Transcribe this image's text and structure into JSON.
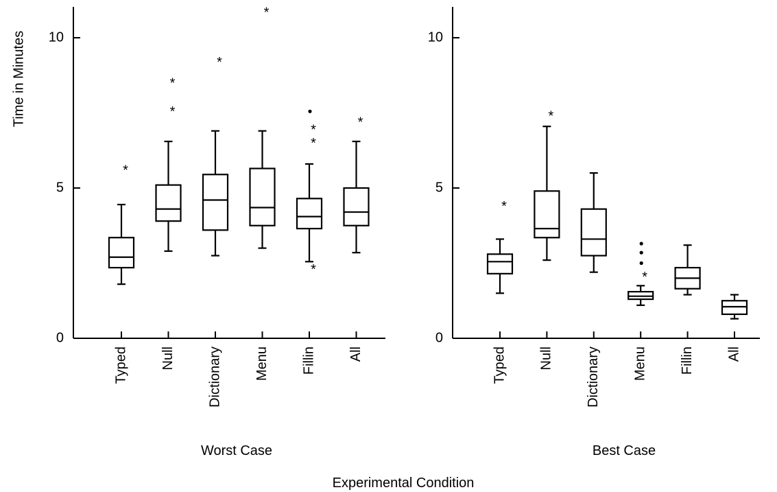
{
  "chart_data": {
    "type": "box",
    "ylabel": "Time in Minutes",
    "xlabel": "Experimental Condition",
    "ylim": [
      0,
      11
    ],
    "yticks": [
      0,
      5,
      10
    ],
    "grid": false,
    "panels": [
      {
        "title": "Worst Case",
        "categories": [
          "Typed",
          "Null",
          "Dictionary",
          "Menu",
          "Fillin",
          "All"
        ],
        "boxes": [
          {
            "category": "Typed",
            "whisker_low": 1.8,
            "q1": 2.35,
            "median": 2.7,
            "q3": 3.35,
            "whisker_high": 4.45,
            "outliers_star": [
              5.65
            ],
            "outliers_dot": []
          },
          {
            "category": "Null",
            "whisker_low": 2.9,
            "q1": 3.9,
            "median": 4.3,
            "q3": 5.1,
            "whisker_high": 6.55,
            "outliers_star": [
              7.6,
              8.55
            ],
            "outliers_dot": []
          },
          {
            "category": "Dictionary",
            "whisker_low": 2.75,
            "q1": 3.6,
            "median": 4.6,
            "q3": 5.45,
            "whisker_high": 6.9,
            "outliers_star": [
              9.25
            ],
            "outliers_dot": []
          },
          {
            "category": "Menu",
            "whisker_low": 3.0,
            "q1": 3.75,
            "median": 4.35,
            "q3": 5.65,
            "whisker_high": 6.9,
            "outliers_star": [
              10.9
            ],
            "outliers_dot": []
          },
          {
            "category": "Fillin",
            "whisker_low": 2.55,
            "q1": 3.65,
            "median": 4.05,
            "q3": 4.65,
            "whisker_high": 5.8,
            "outliers_star": [
              2.35,
              6.55,
              7.0
            ],
            "outliers_dot": [
              7.55
            ]
          },
          {
            "category": "All",
            "whisker_low": 2.85,
            "q1": 3.75,
            "median": 4.2,
            "q3": 5.0,
            "whisker_high": 6.55,
            "outliers_star": [
              7.25
            ],
            "outliers_dot": []
          }
        ]
      },
      {
        "title": "Best Case",
        "categories": [
          "Typed",
          "Null",
          "Dictionary",
          "Menu",
          "Fillin",
          "All"
        ],
        "boxes": [
          {
            "category": "Typed",
            "whisker_low": 1.5,
            "q1": 2.15,
            "median": 2.55,
            "q3": 2.8,
            "whisker_high": 3.3,
            "outliers_star": [
              4.45
            ],
            "outliers_dot": []
          },
          {
            "category": "Null",
            "whisker_low": 2.6,
            "q1": 3.35,
            "median": 3.65,
            "q3": 4.9,
            "whisker_high": 7.05,
            "outliers_star": [
              7.45
            ],
            "outliers_dot": []
          },
          {
            "category": "Dictionary",
            "whisker_low": 2.2,
            "q1": 2.75,
            "median": 3.3,
            "q3": 4.3,
            "whisker_high": 5.5,
            "outliers_star": [],
            "outliers_dot": []
          },
          {
            "category": "Menu",
            "whisker_low": 1.1,
            "q1": 1.3,
            "median": 1.4,
            "q3": 1.55,
            "whisker_high": 1.75,
            "outliers_star": [
              2.1
            ],
            "outliers_dot": [
              2.5,
              2.85,
              3.15
            ]
          },
          {
            "category": "Fillin",
            "whisker_low": 1.45,
            "q1": 1.65,
            "median": 2.0,
            "q3": 2.35,
            "whisker_high": 3.1,
            "outliers_star": [],
            "outliers_dot": []
          },
          {
            "category": "All",
            "whisker_low": 0.65,
            "q1": 0.8,
            "median": 1.05,
            "q3": 1.25,
            "whisker_high": 1.45,
            "outliers_star": [],
            "outliers_dot": []
          }
        ]
      }
    ]
  }
}
